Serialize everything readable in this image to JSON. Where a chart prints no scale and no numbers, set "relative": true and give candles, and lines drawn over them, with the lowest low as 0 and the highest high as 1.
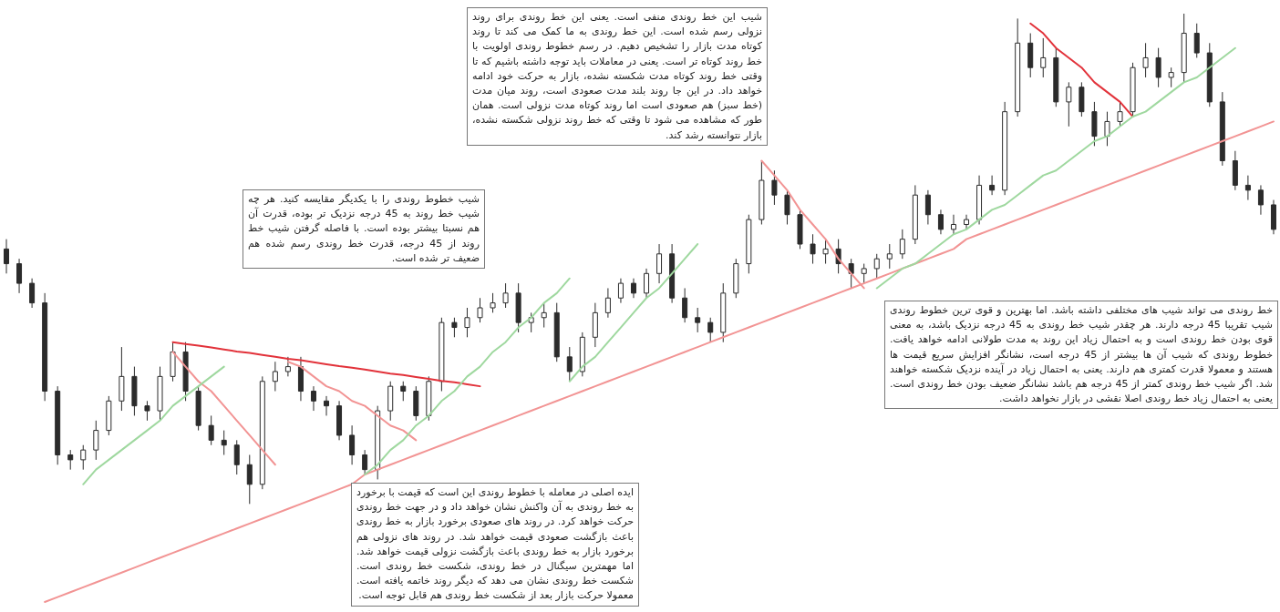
{
  "chart_data": {
    "type": "candlestick",
    "relative": true,
    "color": "#2b2b2b",
    "categories": [
      null,
      null,
      null,
      null,
      null,
      null,
      null,
      null,
      null,
      null,
      null,
      null,
      null,
      null,
      null,
      null,
      null,
      null,
      null,
      null,
      null,
      null,
      null,
      null,
      null,
      null,
      null,
      null,
      null,
      null,
      null,
      null,
      null,
      null,
      null,
      null,
      null,
      null,
      null,
      null,
      null,
      null,
      null,
      null,
      null,
      null,
      null,
      null,
      null,
      null,
      null,
      null,
      null,
      null,
      null,
      null,
      null,
      null,
      null,
      null,
      null,
      null,
      null,
      null,
      null,
      null,
      null,
      null,
      null,
      null,
      null,
      null,
      null,
      null,
      null,
      null,
      null,
      null,
      null,
      null,
      null,
      null,
      null,
      null,
      null,
      null,
      null,
      null,
      null,
      null,
      null,
      null,
      null,
      null,
      null,
      null,
      null,
      null,
      null,
      null
    ],
    "ohlc": [
      [
        0.52,
        0.54,
        0.47,
        0.49
      ],
      [
        0.49,
        0.5,
        0.43,
        0.45
      ],
      [
        0.45,
        0.46,
        0.4,
        0.41
      ],
      [
        0.41,
        0.43,
        0.21,
        0.23
      ],
      [
        0.23,
        0.24,
        0.08,
        0.1
      ],
      [
        0.1,
        0.11,
        0.07,
        0.09
      ],
      [
        0.09,
        0.12,
        0.07,
        0.11
      ],
      [
        0.11,
        0.17,
        0.09,
        0.15
      ],
      [
        0.15,
        0.22,
        0.14,
        0.21
      ],
      [
        0.21,
        0.32,
        0.19,
        0.26
      ],
      [
        0.26,
        0.28,
        0.18,
        0.2
      ],
      [
        0.2,
        0.21,
        0.17,
        0.19
      ],
      [
        0.19,
        0.28,
        0.17,
        0.26
      ],
      [
        0.26,
        0.33,
        0.25,
        0.31
      ],
      [
        0.31,
        0.33,
        0.21,
        0.23
      ],
      [
        0.23,
        0.24,
        0.15,
        0.16
      ],
      [
        0.16,
        0.18,
        0.12,
        0.13
      ],
      [
        0.13,
        0.15,
        0.1,
        0.12
      ],
      [
        0.12,
        0.13,
        0.06,
        0.08
      ],
      [
        0.08,
        0.1,
        0,
        0.04
      ],
      [
        0.04,
        0.26,
        0.03,
        0.25
      ],
      [
        0.25,
        0.29,
        0.23,
        0.27
      ],
      [
        0.27,
        0.3,
        0.26,
        0.28
      ],
      [
        0.28,
        0.3,
        0.21,
        0.23
      ],
      [
        0.23,
        0.24,
        0.19,
        0.21
      ],
      [
        0.21,
        0.22,
        0.18,
        0.2
      ],
      [
        0.2,
        0.21,
        0.13,
        0.14
      ],
      [
        0.14,
        0.16,
        0.08,
        0.1
      ],
      [
        0.1,
        0.11,
        0.06,
        0.07
      ],
      [
        0.07,
        0.2,
        0.05,
        0.19
      ],
      [
        0.19,
        0.25,
        0.17,
        0.24
      ],
      [
        0.24,
        0.25,
        0.21,
        0.23
      ],
      [
        0.23,
        0.24,
        0.17,
        0.18
      ],
      [
        0.18,
        0.26,
        0.17,
        0.25
      ],
      [
        0.25,
        0.38,
        0.23,
        0.37
      ],
      [
        0.37,
        0.38,
        0.34,
        0.36
      ],
      [
        0.36,
        0.4,
        0.34,
        0.38
      ],
      [
        0.38,
        0.42,
        0.37,
        0.4
      ],
      [
        0.4,
        0.43,
        0.39,
        0.41
      ],
      [
        0.41,
        0.45,
        0.4,
        0.43
      ],
      [
        0.43,
        0.45,
        0.35,
        0.37
      ],
      [
        0.37,
        0.39,
        0.35,
        0.38
      ],
      [
        0.38,
        0.41,
        0.36,
        0.39
      ],
      [
        0.39,
        0.41,
        0.29,
        0.3
      ],
      [
        0.3,
        0.32,
        0.25,
        0.27
      ],
      [
        0.27,
        0.35,
        0.26,
        0.34
      ],
      [
        0.34,
        0.41,
        0.32,
        0.39
      ],
      [
        0.39,
        0.44,
        0.38,
        0.42
      ],
      [
        0.42,
        0.46,
        0.41,
        0.45
      ],
      [
        0.45,
        0.46,
        0.42,
        0.43
      ],
      [
        0.43,
        0.48,
        0.42,
        0.47
      ],
      [
        0.47,
        0.53,
        0.45,
        0.51
      ],
      [
        0.51,
        0.53,
        0.41,
        0.42
      ],
      [
        0.42,
        0.44,
        0.37,
        0.38
      ],
      [
        0.38,
        0.4,
        0.35,
        0.37
      ],
      [
        0.37,
        0.38,
        0.33,
        0.35
      ],
      [
        0.35,
        0.45,
        0.33,
        0.43
      ],
      [
        0.43,
        0.5,
        0.42,
        0.49
      ],
      [
        0.49,
        0.59,
        0.47,
        0.58
      ],
      [
        0.58,
        0.7,
        0.57,
        0.66
      ],
      [
        0.66,
        0.68,
        0.61,
        0.63
      ],
      [
        0.63,
        0.64,
        0.57,
        0.59
      ],
      [
        0.59,
        0.6,
        0.52,
        0.53
      ],
      [
        0.53,
        0.55,
        0.49,
        0.51
      ],
      [
        0.51,
        0.54,
        0.49,
        0.52
      ],
      [
        0.52,
        0.54,
        0.47,
        0.49
      ],
      [
        0.49,
        0.5,
        0.44,
        0.47
      ],
      [
        0.47,
        0.49,
        0.45,
        0.48
      ],
      [
        0.48,
        0.51,
        0.46,
        0.5
      ],
      [
        0.5,
        0.53,
        0.48,
        0.51
      ],
      [
        0.51,
        0.56,
        0.5,
        0.54
      ],
      [
        0.54,
        0.65,
        0.53,
        0.63
      ],
      [
        0.63,
        0.64,
        0.57,
        0.59
      ],
      [
        0.59,
        0.6,
        0.55,
        0.56
      ],
      [
        0.56,
        0.59,
        0.55,
        0.57
      ],
      [
        0.57,
        0.59,
        0.56,
        0.58
      ],
      [
        0.58,
        0.67,
        0.57,
        0.65
      ],
      [
        0.65,
        0.67,
        0.63,
        0.64
      ],
      [
        0.64,
        0.82,
        0.63,
        0.8
      ],
      [
        0.8,
        0.99,
        0.79,
        0.94
      ],
      [
        0.94,
        0.96,
        0.87,
        0.89
      ],
      [
        0.89,
        0.95,
        0.87,
        0.91
      ],
      [
        0.91,
        0.93,
        0.81,
        0.82
      ],
      [
        0.82,
        0.86,
        0.77,
        0.85
      ],
      [
        0.85,
        0.86,
        0.79,
        0.8
      ],
      [
        0.8,
        0.82,
        0.73,
        0.75
      ],
      [
        0.75,
        0.8,
        0.73,
        0.78
      ],
      [
        0.78,
        0.82,
        0.77,
        0.8
      ],
      [
        0.8,
        0.9,
        0.79,
        0.89
      ],
      [
        0.89,
        0.94,
        0.87,
        0.91
      ],
      [
        0.91,
        0.93,
        0.85,
        0.87
      ],
      [
        0.87,
        0.89,
        0.85,
        0.88
      ],
      [
        0.88,
        1,
        0.86,
        0.96
      ],
      [
        0.96,
        0.98,
        0.91,
        0.92
      ],
      [
        0.92,
        0.94,
        0.81,
        0.82
      ],
      [
        0.82,
        0.84,
        0.69,
        0.7
      ],
      [
        0.7,
        0.72,
        0.64,
        0.65
      ],
      [
        0.65,
        0.67,
        0.62,
        0.64
      ],
      [
        0.64,
        0.65,
        0.59,
        0.61
      ],
      [
        0.61,
        0.62,
        0.55,
        0.56
      ]
    ],
    "series": [
      {
        "type": "line",
        "color": "#f29494",
        "values": [
          null,
          null,
          null,
          -0.2,
          -0.19,
          -0.18,
          -0.17,
          -0.16,
          -0.15,
          -0.14,
          -0.13,
          -0.12,
          -0.11,
          -0.1,
          -0.09,
          -0.08,
          -0.07,
          -0.06,
          -0.05,
          -0.04,
          -0.03,
          -0.02,
          -0.01,
          0,
          0.01,
          0.02,
          0.03,
          0.04,
          0.06,
          0.07,
          0.08,
          0.09,
          0.1,
          0.11,
          0.12,
          0.13,
          0.14,
          0.15,
          0.16,
          0.17,
          0.18,
          0.19,
          0.2,
          0.21,
          0.22,
          0.23,
          0.24,
          0.25,
          0.26,
          0.27,
          0.28,
          0.29,
          0.3,
          0.31,
          0.32,
          0.33,
          0.34,
          0.35,
          0.36,
          0.37,
          0.38,
          0.39,
          0.4,
          0.41,
          0.42,
          0.43,
          0.44,
          0.45,
          0.46,
          0.47,
          0.48,
          0.49,
          0.5,
          0.51,
          0.52,
          0.54,
          0.55,
          0.56,
          0.57,
          0.58,
          0.59,
          0.6,
          0.61,
          0.62,
          0.63,
          0.64,
          0.65,
          0.66,
          0.67,
          0.68,
          0.69,
          0.7,
          0.71,
          0.72,
          0.73,
          0.74,
          0.75,
          0.76,
          0.77,
          0.78
        ]
      },
      {
        "type": "line",
        "color": "#e2323a",
        "values": [
          null,
          null,
          null,
          null,
          null,
          null,
          null,
          null,
          null,
          null,
          null,
          null,
          null,
          0.33,
          0.326,
          0.323,
          0.319,
          0.315,
          0.311,
          0.308,
          0.304,
          0.3,
          0.296,
          0.293,
          0.289,
          0.285,
          0.281,
          0.278,
          0.274,
          0.27,
          0.266,
          0.263,
          0.259,
          0.255,
          0.251,
          0.248,
          0.244,
          0.24,
          null,
          null,
          null,
          null,
          null,
          null,
          null,
          null,
          null,
          null,
          null,
          null,
          null,
          null,
          null,
          null,
          null,
          null,
          null,
          null,
          null,
          null,
          null,
          null,
          null,
          null,
          null,
          null,
          null,
          null,
          null,
          null,
          null,
          null,
          null,
          null,
          null,
          null,
          null,
          null,
          null,
          null,
          null,
          null,
          null,
          null,
          null,
          null,
          null,
          null,
          null,
          null,
          null,
          null,
          null,
          null,
          null,
          null,
          null,
          null,
          null,
          null
        ]
      },
      {
        "type": "line",
        "color": "#e2323a",
        "values": [
          null,
          null,
          null,
          null,
          null,
          null,
          null,
          null,
          null,
          null,
          null,
          null,
          null,
          null,
          null,
          null,
          null,
          null,
          null,
          null,
          null,
          null,
          null,
          null,
          null,
          null,
          null,
          null,
          null,
          null,
          null,
          null,
          null,
          null,
          null,
          null,
          null,
          null,
          null,
          null,
          null,
          null,
          null,
          null,
          null,
          null,
          null,
          null,
          null,
          null,
          null,
          null,
          null,
          null,
          null,
          null,
          null,
          null,
          null,
          null,
          null,
          null,
          null,
          null,
          null,
          null,
          null,
          null,
          null,
          null,
          null,
          null,
          null,
          null,
          null,
          null,
          null,
          null,
          null,
          null,
          0.98,
          0.96,
          0.93,
          0.91,
          0.89,
          0.86,
          0.84,
          0.82,
          0.79,
          null,
          null,
          null,
          null,
          null,
          null,
          null,
          null,
          null,
          null,
          null
        ]
      },
      {
        "type": "line",
        "color": "#f29494",
        "values": [
          null,
          null,
          null,
          null,
          null,
          null,
          null,
          null,
          null,
          null,
          null,
          null,
          null,
          0.31,
          0.28,
          0.25,
          0.23,
          0.2,
          0.17,
          0.14,
          0.11,
          0.08,
          null,
          null,
          null,
          null,
          null,
          null,
          null,
          null,
          null,
          null,
          null,
          null,
          null,
          null,
          null,
          null,
          null,
          null,
          null,
          null,
          null,
          null,
          null,
          null,
          null,
          null,
          null,
          null,
          null,
          null,
          null,
          null,
          null,
          null,
          null,
          null,
          null,
          null,
          null,
          null,
          null,
          null,
          null,
          null,
          null,
          null,
          null,
          null,
          null,
          null,
          null,
          null,
          null,
          null,
          null,
          null,
          null,
          null,
          null,
          null,
          null,
          null,
          null,
          null,
          null,
          null,
          null,
          null,
          null,
          null,
          null,
          null,
          null,
          null,
          null,
          null,
          null,
          null
        ]
      },
      {
        "type": "line",
        "color": "#f29494",
        "values": [
          null,
          null,
          null,
          null,
          null,
          null,
          null,
          null,
          null,
          null,
          null,
          null,
          null,
          null,
          null,
          null,
          null,
          null,
          null,
          null,
          null,
          null,
          0.29,
          0.28,
          0.26,
          0.24,
          0.23,
          0.21,
          0.2,
          0.18,
          0.16,
          0.15,
          0.13,
          null,
          null,
          null,
          null,
          null,
          null,
          null,
          null,
          null,
          null,
          null,
          null,
          null,
          null,
          null,
          null,
          null,
          null,
          null,
          null,
          null,
          null,
          null,
          null,
          null,
          null,
          null,
          null,
          null,
          null,
          null,
          null,
          null,
          null,
          null,
          null,
          null,
          null,
          null,
          null,
          null,
          null,
          null,
          null,
          null,
          null,
          null,
          null,
          null,
          null,
          null,
          null,
          null,
          null,
          null,
          null,
          null,
          null,
          null,
          null,
          null,
          null,
          null,
          null,
          null,
          null,
          null
        ]
      },
      {
        "type": "line",
        "color": "#f29494",
        "values": [
          null,
          null,
          null,
          null,
          null,
          null,
          null,
          null,
          null,
          null,
          null,
          null,
          null,
          null,
          null,
          null,
          null,
          null,
          null,
          null,
          null,
          null,
          null,
          null,
          null,
          null,
          null,
          null,
          null,
          null,
          null,
          null,
          null,
          null,
          null,
          null,
          null,
          null,
          null,
          null,
          null,
          null,
          null,
          null,
          null,
          null,
          null,
          null,
          null,
          null,
          null,
          null,
          null,
          null,
          null,
          null,
          null,
          null,
          null,
          0.7,
          0.67,
          0.64,
          0.6,
          0.57,
          0.54,
          0.5,
          0.47,
          0.44,
          null,
          null,
          null,
          null,
          null,
          null,
          null,
          null,
          null,
          null,
          null,
          null,
          null,
          null,
          null,
          null,
          null,
          null,
          null,
          null,
          null,
          null,
          null,
          null,
          null,
          null,
          null,
          null,
          null,
          null,
          null,
          null
        ]
      },
      {
        "type": "line",
        "color": "#9fd89f",
        "values": [
          null,
          null,
          null,
          null,
          null,
          null,
          0.04,
          0.07,
          0.09,
          0.11,
          0.13,
          0.15,
          0.17,
          0.2,
          0.22,
          0.24,
          0.26,
          0.28,
          null,
          null,
          null,
          null,
          null,
          null,
          null,
          null,
          null,
          null,
          null,
          null,
          null,
          null,
          null,
          null,
          null,
          null,
          null,
          null,
          null,
          null,
          null,
          null,
          null,
          null,
          null,
          null,
          null,
          null,
          null,
          null,
          null,
          null,
          null,
          null,
          null,
          null,
          null,
          null,
          null,
          null,
          null,
          null,
          null,
          null,
          null,
          null,
          null,
          null,
          null,
          null,
          null,
          null,
          null,
          null,
          null,
          null,
          null,
          null,
          null,
          null,
          null,
          null,
          null,
          null,
          null,
          null,
          null,
          null,
          null,
          null,
          null,
          null,
          null,
          null,
          null,
          null,
          null,
          null,
          null,
          null
        ]
      },
      {
        "type": "line",
        "color": "#9fd89f",
        "values": [
          null,
          null,
          null,
          null,
          null,
          null,
          null,
          null,
          null,
          null,
          null,
          null,
          null,
          null,
          null,
          null,
          null,
          null,
          null,
          null,
          null,
          null,
          null,
          null,
          null,
          null,
          null,
          null,
          0.06,
          0.08,
          0.11,
          0.13,
          0.16,
          0.18,
          0.21,
          0.23,
          0.26,
          0.28,
          0.31,
          0.33,
          0.36,
          0.38,
          0.41,
          0.43,
          0.46,
          null,
          null,
          null,
          null,
          null,
          null,
          null,
          null,
          null,
          null,
          null,
          null,
          null,
          null,
          null,
          null,
          null,
          null,
          null,
          null,
          null,
          null,
          null,
          null,
          null,
          null,
          null,
          null,
          null,
          null,
          null,
          null,
          null,
          null,
          null,
          null,
          null,
          null,
          null,
          null,
          null,
          null,
          null,
          null,
          null,
          null,
          null,
          null,
          null,
          null,
          null,
          null,
          null,
          null,
          null
        ]
      },
      {
        "type": "line",
        "color": "#9fd89f",
        "values": [
          null,
          null,
          null,
          null,
          null,
          null,
          null,
          null,
          null,
          null,
          null,
          null,
          null,
          null,
          null,
          null,
          null,
          null,
          null,
          null,
          null,
          null,
          null,
          null,
          null,
          null,
          null,
          null,
          null,
          null,
          null,
          null,
          null,
          null,
          null,
          null,
          null,
          null,
          null,
          null,
          null,
          null,
          null,
          null,
          0.25,
          0.28,
          0.3,
          0.33,
          0.36,
          0.39,
          0.42,
          0.44,
          0.47,
          0.5,
          0.53,
          null,
          null,
          null,
          null,
          null,
          null,
          null,
          null,
          null,
          null,
          null,
          null,
          null,
          null,
          null,
          null,
          null,
          null,
          null,
          null,
          null,
          null,
          null,
          null,
          null,
          null,
          null,
          null,
          null,
          null,
          null,
          null,
          null,
          null,
          null,
          null,
          null,
          null,
          null,
          null,
          null,
          null,
          null,
          null,
          null
        ]
      },
      {
        "type": "line",
        "color": "#9fd89f",
        "values": [
          null,
          null,
          null,
          null,
          null,
          null,
          null,
          null,
          null,
          null,
          null,
          null,
          null,
          null,
          null,
          null,
          null,
          null,
          null,
          null,
          null,
          null,
          null,
          null,
          null,
          null,
          null,
          null,
          null,
          null,
          null,
          null,
          null,
          null,
          null,
          null,
          null,
          null,
          null,
          null,
          null,
          null,
          null,
          null,
          null,
          null,
          null,
          null,
          null,
          null,
          null,
          null,
          null,
          null,
          null,
          null,
          null,
          null,
          null,
          null,
          null,
          null,
          null,
          null,
          null,
          null,
          null,
          null,
          0.44,
          0.46,
          0.48,
          0.49,
          0.51,
          0.53,
          0.55,
          0.56,
          0.58,
          0.6,
          0.61,
          0.63,
          0.65,
          0.67,
          0.68,
          0.7,
          0.72,
          0.74,
          0.75,
          0.77,
          0.79,
          0.8,
          0.82,
          0.84,
          0.86,
          0.87,
          0.89,
          0.91,
          0.93,
          null,
          null,
          null
        ]
      }
    ],
    "annotations": [
      "شیب این خط روندی منفی است. یعنی این خط روندی برای روند نزولی رسم شده است. این خط روندی به ما کمک می کند تا روند کوتاه مدت بازار را تشخیص دهیم. در رسم خطوط روندی اولویت با خط روند کوتاه تر است. یعنی در معاملات باید توجه داشته باشیم که تا وقتی خط روند کوتاه مدت شکسته نشده، بازار به حرکت خود ادامه خواهد داد. در این جا روند بلند مدت صعودی است، روند میان مدت (خط سبز) هم صعودی است اما روند کوتاه مدت نزولی است. همان طور که مشاهده می شود تا وقتی که خط روند نزولی شکسته نشده، بازار نتوانسته رشد کند.",
      "شیب خطوط روندی را با یکدیگر مقایسه کنید. هر چه شیب خط روند به 45 درجه نزدیک تر بوده، قدرت آن هم نسبتا بیشتر بوده است. با فاصله گرفتن شیب خط روند از 45 درجه، قدرت خط روندی رسم شده هم ضعیف تر شده است.",
      "خط روندی می تواند شیب های مختلفی داشته باشد. اما بهترین و قوی ترین خطوط روندی شیب تقریبا 45 درجه دارند. هر چقدر شیب خط روندی به 45 درجه نزدیک باشد، به معنی قوی بودن خط روندی است و به احتمال زیاد این روند به مدت طولانی ادامه خواهد یافت. خطوط روندی که شیب آن ها بیشتر از 45 درجه است، نشانگر افزایش سریع قیمت ها هستند و معمولا قدرت کمتری هم دارند. یعنی به احتمال زیاد در آینده نزدیک شکسته خواهند شد. اگر شیب خط روندی کمتر از 45 درجه هم باشد نشانگر ضعیف بودن خط روندی است. یعنی به احتمال زیاد خط روندی اصلا نقشی در بازار نخواهد داشت.",
      "ایده اصلی در معامله با خطوط روندی این است که قیمت با برخورد به خط روندی به آن واکنش نشان خواهد داد و در جهت خط روندی حرکت خواهد کرد. در روند های صعودی برخورد بازار به خط روندی باعث بازگشت صعودی قیمت خواهد شد. در روند های نزولی هم برخورد بازار به خط روندی باعث بازگشت نزولی قیمت خواهد شد. اما مهمترین سیگنال در خط روندی، شکست خط روندی است. شکست خط روندی نشان می دهد که دیگر روند خاتمه یافته است. معمولا حرکت بازار بعد از شکست خط روندی هم قابل توجه است."
    ]
  }
}
